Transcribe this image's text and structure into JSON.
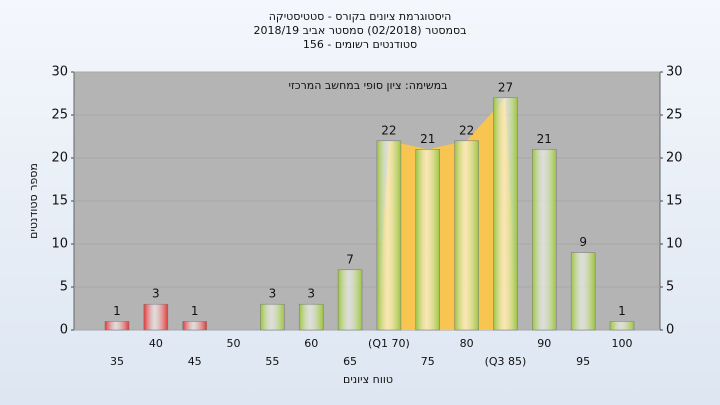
{
  "chart_data": {
    "type": "bar",
    "title": "היסטוגרמת ציונים בקורס - סטטיסטיקה",
    "subtitle": "בסמסטר  (02/2018)  סמסטר אביב 2018/19",
    "subtitle2": "סטודנטים רשומים - 156",
    "annotation": "במשימה: ציון סופי במחשב המרכזי",
    "x_label": "טווח ציונים",
    "y_label": "מספר סטודנטים",
    "categories": [
      "35",
      "40",
      "45",
      "50",
      "55",
      "60",
      "65",
      "(Q1 70)",
      "75",
      "80",
      "(Q3 85)",
      "90",
      "95",
      "100"
    ],
    "values": [
      1,
      3,
      1,
      0,
      3,
      3,
      7,
      22,
      21,
      22,
      27,
      21,
      9,
      1
    ],
    "colors": [
      "#e03a3a",
      "#e03a3a",
      "#e03a3a",
      "#9cc440",
      "#9cc440",
      "#9cc440",
      "#9cc440",
      "#9cc440",
      "#9cc440",
      "#9cc440",
      "#9cc440",
      "#9cc440",
      "#9cc440",
      "#9cc440"
    ],
    "ylim": [
      0,
      30
    ],
    "yticks": [
      0,
      5,
      10,
      15,
      20,
      25,
      30
    ],
    "y2lim": [
      0,
      30
    ],
    "y2ticks": [
      0,
      5,
      10,
      15,
      20,
      25,
      30
    ],
    "grid": true
  }
}
